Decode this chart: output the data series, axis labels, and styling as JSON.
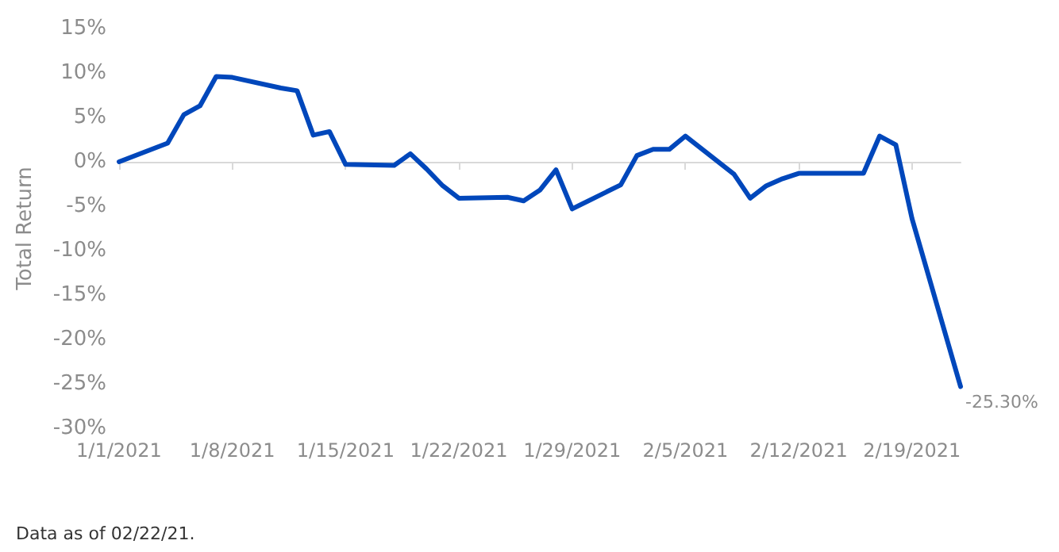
{
  "chart_data": {
    "type": "line",
    "ylabel": "Total Return",
    "x": [
      "2021-01-01",
      "2021-01-04",
      "2021-01-05",
      "2021-01-06",
      "2021-01-07",
      "2021-01-08",
      "2021-01-11",
      "2021-01-12",
      "2021-01-13",
      "2021-01-14",
      "2021-01-15",
      "2021-01-18",
      "2021-01-19",
      "2021-01-20",
      "2021-01-21",
      "2021-01-22",
      "2021-01-25",
      "2021-01-26",
      "2021-01-27",
      "2021-01-28",
      "2021-01-29",
      "2021-02-01",
      "2021-02-02",
      "2021-02-03",
      "2021-02-04",
      "2021-02-05",
      "2021-02-08",
      "2021-02-09",
      "2021-02-10",
      "2021-02-11",
      "2021-02-12",
      "2021-02-15",
      "2021-02-16",
      "2021-02-17",
      "2021-02-18",
      "2021-02-19",
      "2021-02-22"
    ],
    "series": [
      {
        "color": "#0047bb",
        "values": [
          0,
          2.1,
          5.3,
          6.3,
          9.6,
          9.5,
          8.3,
          8.0,
          3.0,
          3.4,
          -0.3,
          -0.4,
          0.9,
          -0.8,
          -2.7,
          -4.1,
          -4.0,
          -4.4,
          -3.2,
          -0.9,
          -5.3,
          -2.6,
          0.7,
          1.4,
          1.4,
          2.9,
          -1.4,
          -4.1,
          -2.7,
          -1.9,
          -1.3,
          -1.3,
          -1.3,
          2.9,
          1.9,
          -6.4,
          -25.3
        ],
        "value_labels": [
          null,
          null,
          null,
          null,
          null,
          null,
          null,
          null,
          null,
          null,
          null,
          null,
          null,
          null,
          null,
          null,
          null,
          null,
          null,
          null,
          null,
          null,
          null,
          null,
          null,
          null,
          null,
          null,
          null,
          null,
          null,
          null,
          null,
          null,
          null,
          null,
          "-25.30%"
        ]
      }
    ],
    "xlim": [
      "2021-01-01",
      "2021-02-22"
    ],
    "xticks": [
      {
        "value": "2021-01-01",
        "label": "1/1/2021"
      },
      {
        "value": "2021-01-08",
        "label": "1/8/2021"
      },
      {
        "value": "2021-01-15",
        "label": "1/15/2021"
      },
      {
        "value": "2021-01-22",
        "label": "1/22/2021"
      },
      {
        "value": "2021-01-29",
        "label": "1/29/2021"
      },
      {
        "value": "2021-02-05",
        "label": "2/5/2021"
      },
      {
        "value": "2021-02-12",
        "label": "2/12/2021"
      },
      {
        "value": "2021-02-19",
        "label": "2/19/2021"
      }
    ],
    "ylim": [
      -30,
      15
    ],
    "yticks": [
      {
        "value": -30,
        "label": "-30%"
      },
      {
        "value": -25,
        "label": "-25%"
      },
      {
        "value": -20,
        "label": "-20%"
      },
      {
        "value": -15,
        "label": "-15%"
      },
      {
        "value": -10,
        "label": "-10%"
      },
      {
        "value": -5,
        "label": "-5%"
      },
      {
        "value": 0,
        "label": "0%"
      },
      {
        "value": 5,
        "label": "5%"
      },
      {
        "value": 10,
        "label": "10%"
      },
      {
        "value": 15,
        "label": "15%"
      }
    ],
    "marker": "none",
    "line_style": "solid",
    "annotations": [
      "Data as of 02/22/21."
    ]
  }
}
